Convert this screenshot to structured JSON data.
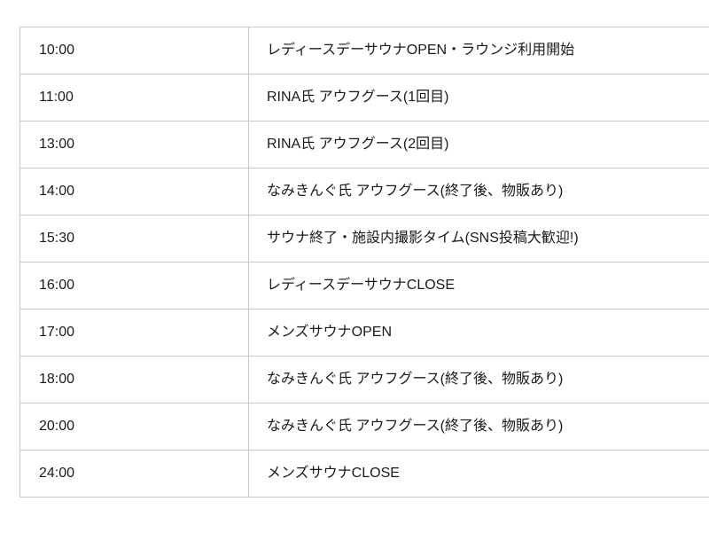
{
  "page": {
    "background": "#ffffff"
  },
  "table": {
    "name": "event-schedule-table",
    "colors": {
      "border": "#c8c8c8",
      "text": "#1a1a1a",
      "cell_background": "#ffffff"
    },
    "columns": [
      "time",
      "event"
    ],
    "rows": [
      {
        "time": "10:00",
        "event": "レディースデーサウナOPEN・ラウンジ利用開始"
      },
      {
        "time": "11:00",
        "event": "RINA氏 アウフグース(1回目)"
      },
      {
        "time": "13:00",
        "event": "RINA氏 アウフグース(2回目)"
      },
      {
        "time": "14:00",
        "event": "なみきんぐ氏 アウフグース(終了後、物販あり)"
      },
      {
        "time": "15:30",
        "event": "サウナ終了・施設内撮影タイム(SNS投稿大歓迎!)"
      },
      {
        "time": "16:00",
        "event": "レディースデーサウナCLOSE"
      },
      {
        "time": "17:00",
        "event": "メンズサウナOPEN"
      },
      {
        "time": "18:00",
        "event": "なみきんぐ氏 アウフグース(終了後、物販あり)"
      },
      {
        "time": "20:00",
        "event": "なみきんぐ氏 アウフグース(終了後、物販あり)"
      },
      {
        "time": "24:00",
        "event": "メンズサウナCLOSE"
      }
    ]
  }
}
